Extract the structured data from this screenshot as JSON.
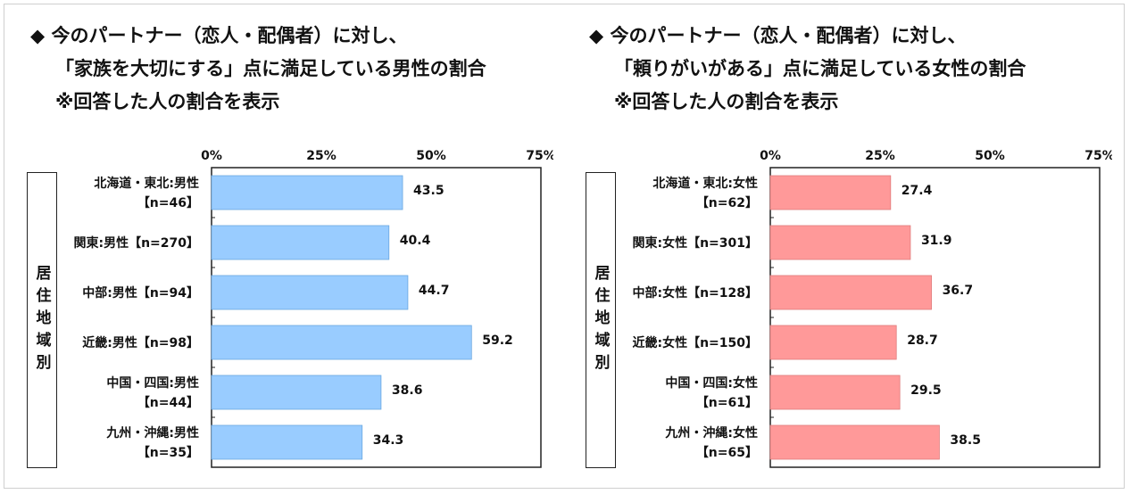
{
  "panels": [
    {
      "title_lines": [
        "◆ 今のパートナー（恋人・配偶者）に対し、",
        "「家族を大切にする」点に満足している男性の割合",
        "※回答した人の割合を表示"
      ],
      "region_label": "居住地域別",
      "bar_color": "#99ccff",
      "bar_stroke": "#6aa7e0"
    },
    {
      "title_lines": [
        "◆ 今のパートナー（恋人・配偶者）に対し、",
        "「頼りがいがある」点に満足している女性の割合",
        "※回答した人の割合を表示"
      ],
      "region_label": "居住地域別",
      "bar_color": "#ff9999",
      "bar_stroke": "#e07b7b"
    }
  ],
  "chart_data": [
    {
      "type": "bar",
      "orientation": "horizontal",
      "xlim": [
        0,
        75
      ],
      "x_ticks": [
        "0%",
        "25%",
        "50%",
        "75%"
      ],
      "categories": [
        [
          "北海道・東北:男性",
          "【n=46】"
        ],
        [
          "関東:男性【n=270】"
        ],
        [
          "中部:男性【n=94】"
        ],
        [
          "近畿:男性【n=98】"
        ],
        [
          "中国・四国:男性",
          "【n=44】"
        ],
        [
          "九州・沖縄:男性",
          "【n=35】"
        ]
      ],
      "values": [
        43.5,
        40.4,
        44.7,
        59.2,
        38.6,
        34.3
      ],
      "value_labels": [
        "43.5",
        "40.4",
        "44.7",
        "59.2",
        "38.6",
        "34.3"
      ],
      "grid": false
    },
    {
      "type": "bar",
      "orientation": "horizontal",
      "xlim": [
        0,
        75
      ],
      "x_ticks": [
        "0%",
        "25%",
        "50%",
        "75%"
      ],
      "categories": [
        [
          "北海道・東北:女性",
          "【n=62】"
        ],
        [
          "関東:女性【n=301】"
        ],
        [
          "中部:女性【n=128】"
        ],
        [
          "近畿:女性【n=150】"
        ],
        [
          "中国・四国:女性",
          "【n=61】"
        ],
        [
          "九州・沖縄:女性",
          "【n=65】"
        ]
      ],
      "values": [
        27.4,
        31.9,
        36.7,
        28.7,
        29.5,
        38.5
      ],
      "value_labels": [
        "27.4",
        "31.9",
        "36.7",
        "28.7",
        "29.5",
        "38.5"
      ],
      "grid": false
    }
  ]
}
